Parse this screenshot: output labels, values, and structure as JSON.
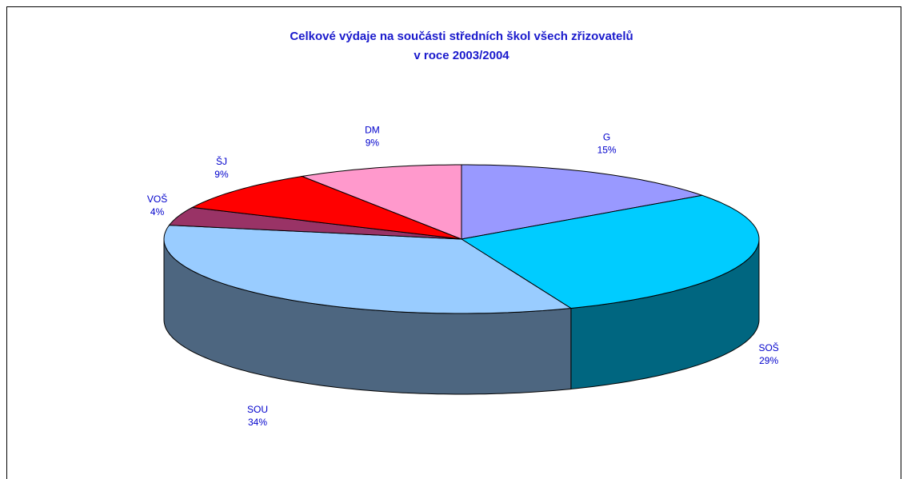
{
  "chart_data": {
    "type": "pie3d",
    "title": [
      "Celkové výdaje na součásti středních škol všech zřizovatelů",
      "v roce 2003/2004"
    ],
    "categories": [
      "G",
      "SOŠ",
      "SOU",
      "VOŠ",
      "ŠJ",
      "DM"
    ],
    "values": [
      15,
      29,
      34,
      4,
      9,
      9
    ],
    "value_labels": [
      "15%",
      "29%",
      "34%",
      "4%",
      "9%",
      "9%"
    ],
    "colors": [
      "#9999ff",
      "#00ccff",
      "#99ccff",
      "#993366",
      "#ff0000",
      "#ff99cc"
    ],
    "side_colors": [
      "#4d4d80",
      "#006680",
      "#4d6680",
      "#4d1a33",
      "#800000",
      "#804d66"
    ]
  }
}
